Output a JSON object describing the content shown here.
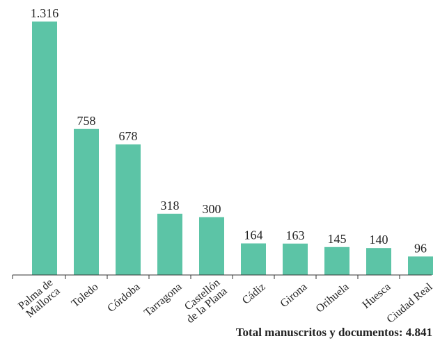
{
  "colors": {
    "bar": "#5cc4a6",
    "axis": "#333333",
    "text": "#222222"
  },
  "chart_data": {
    "type": "bar",
    "title": "",
    "xlabel": "",
    "ylabel": "",
    "categories": [
      [
        "Palma de",
        "Mallorca"
      ],
      [
        "Toledo"
      ],
      [
        "Córdoba"
      ],
      [
        "Tarragona"
      ],
      [
        "Castellón",
        "de la Plana"
      ],
      [
        "Cádiz"
      ],
      [
        "Girona"
      ],
      [
        "Orihuela"
      ],
      [
        "Huesca"
      ],
      [
        "Ciudad Real"
      ]
    ],
    "values": [
      1316,
      758,
      678,
      318,
      300,
      164,
      163,
      145,
      140,
      96
    ],
    "value_labels": [
      "1.316",
      "758",
      "678",
      "318",
      "300",
      "164",
      "163",
      "145",
      "140",
      "96"
    ],
    "ylim": [
      0,
      1316
    ],
    "grid": false
  },
  "footer": {
    "total_text": "Total manuscritos y documentos: 4.841"
  }
}
